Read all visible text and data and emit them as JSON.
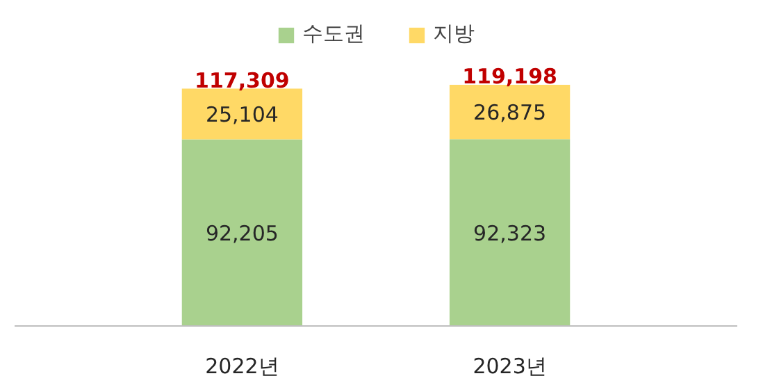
{
  "chart_data": {
    "type": "bar",
    "stacked": true,
    "categories": [
      "2022년",
      "2023년"
    ],
    "series": [
      {
        "name": "수도권",
        "color": "#a9d18e",
        "values": [
          92205,
          92323
        ],
        "value_labels": [
          "92,205",
          "92,323"
        ]
      },
      {
        "name": "지방",
        "color": "#ffd966",
        "values": [
          25104,
          26875
        ],
        "value_labels": [
          "25,104",
          "26,875"
        ]
      }
    ],
    "totals": [
      "117,309",
      "119,198"
    ],
    "legend": "top"
  }
}
